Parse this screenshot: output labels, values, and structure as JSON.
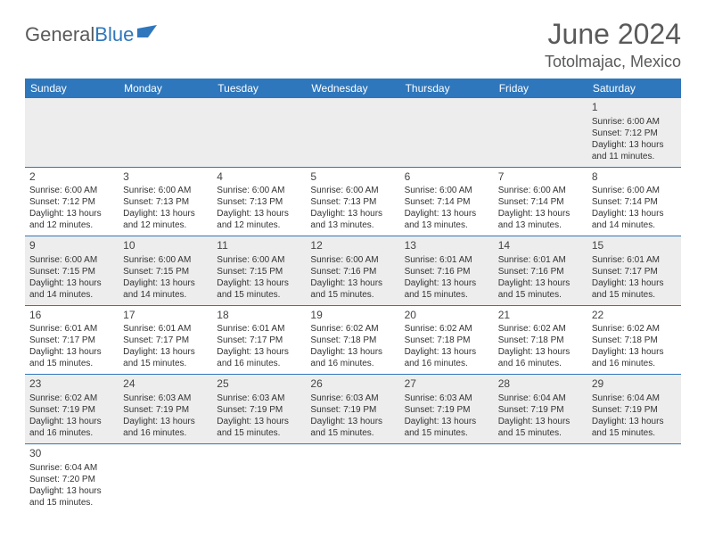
{
  "brand": {
    "part1": "General",
    "part2": "Blue"
  },
  "title": "June 2024",
  "location": "Totolmajac, Mexico",
  "colors": {
    "header_bg": "#2f77bc",
    "header_text": "#ffffff",
    "row_alt_bg": "#ededed",
    "row_bg": "#ffffff",
    "divider": "#2f77bc",
    "text": "#333333",
    "title_text": "#5a5a5a"
  },
  "typography": {
    "title_fontsize": 32,
    "location_fontsize": 18,
    "dayheader_fontsize": 12,
    "cell_fontsize": 10
  },
  "day_headers": [
    "Sunday",
    "Monday",
    "Tuesday",
    "Wednesday",
    "Thursday",
    "Friday",
    "Saturday"
  ],
  "weeks": [
    [
      null,
      null,
      null,
      null,
      null,
      null,
      {
        "d": "1",
        "sunrise": "Sunrise: 6:00 AM",
        "sunset": "Sunset: 7:12 PM",
        "dl1": "Daylight: 13 hours",
        "dl2": "and 11 minutes."
      }
    ],
    [
      {
        "d": "2",
        "sunrise": "Sunrise: 6:00 AM",
        "sunset": "Sunset: 7:12 PM",
        "dl1": "Daylight: 13 hours",
        "dl2": "and 12 minutes."
      },
      {
        "d": "3",
        "sunrise": "Sunrise: 6:00 AM",
        "sunset": "Sunset: 7:13 PM",
        "dl1": "Daylight: 13 hours",
        "dl2": "and 12 minutes."
      },
      {
        "d": "4",
        "sunrise": "Sunrise: 6:00 AM",
        "sunset": "Sunset: 7:13 PM",
        "dl1": "Daylight: 13 hours",
        "dl2": "and 12 minutes."
      },
      {
        "d": "5",
        "sunrise": "Sunrise: 6:00 AM",
        "sunset": "Sunset: 7:13 PM",
        "dl1": "Daylight: 13 hours",
        "dl2": "and 13 minutes."
      },
      {
        "d": "6",
        "sunrise": "Sunrise: 6:00 AM",
        "sunset": "Sunset: 7:14 PM",
        "dl1": "Daylight: 13 hours",
        "dl2": "and 13 minutes."
      },
      {
        "d": "7",
        "sunrise": "Sunrise: 6:00 AM",
        "sunset": "Sunset: 7:14 PM",
        "dl1": "Daylight: 13 hours",
        "dl2": "and 13 minutes."
      },
      {
        "d": "8",
        "sunrise": "Sunrise: 6:00 AM",
        "sunset": "Sunset: 7:14 PM",
        "dl1": "Daylight: 13 hours",
        "dl2": "and 14 minutes."
      }
    ],
    [
      {
        "d": "9",
        "sunrise": "Sunrise: 6:00 AM",
        "sunset": "Sunset: 7:15 PM",
        "dl1": "Daylight: 13 hours",
        "dl2": "and 14 minutes."
      },
      {
        "d": "10",
        "sunrise": "Sunrise: 6:00 AM",
        "sunset": "Sunset: 7:15 PM",
        "dl1": "Daylight: 13 hours",
        "dl2": "and 14 minutes."
      },
      {
        "d": "11",
        "sunrise": "Sunrise: 6:00 AM",
        "sunset": "Sunset: 7:15 PM",
        "dl1": "Daylight: 13 hours",
        "dl2": "and 15 minutes."
      },
      {
        "d": "12",
        "sunrise": "Sunrise: 6:00 AM",
        "sunset": "Sunset: 7:16 PM",
        "dl1": "Daylight: 13 hours",
        "dl2": "and 15 minutes."
      },
      {
        "d": "13",
        "sunrise": "Sunrise: 6:01 AM",
        "sunset": "Sunset: 7:16 PM",
        "dl1": "Daylight: 13 hours",
        "dl2": "and 15 minutes."
      },
      {
        "d": "14",
        "sunrise": "Sunrise: 6:01 AM",
        "sunset": "Sunset: 7:16 PM",
        "dl1": "Daylight: 13 hours",
        "dl2": "and 15 minutes."
      },
      {
        "d": "15",
        "sunrise": "Sunrise: 6:01 AM",
        "sunset": "Sunset: 7:17 PM",
        "dl1": "Daylight: 13 hours",
        "dl2": "and 15 minutes."
      }
    ],
    [
      {
        "d": "16",
        "sunrise": "Sunrise: 6:01 AM",
        "sunset": "Sunset: 7:17 PM",
        "dl1": "Daylight: 13 hours",
        "dl2": "and 15 minutes."
      },
      {
        "d": "17",
        "sunrise": "Sunrise: 6:01 AM",
        "sunset": "Sunset: 7:17 PM",
        "dl1": "Daylight: 13 hours",
        "dl2": "and 15 minutes."
      },
      {
        "d": "18",
        "sunrise": "Sunrise: 6:01 AM",
        "sunset": "Sunset: 7:17 PM",
        "dl1": "Daylight: 13 hours",
        "dl2": "and 16 minutes."
      },
      {
        "d": "19",
        "sunrise": "Sunrise: 6:02 AM",
        "sunset": "Sunset: 7:18 PM",
        "dl1": "Daylight: 13 hours",
        "dl2": "and 16 minutes."
      },
      {
        "d": "20",
        "sunrise": "Sunrise: 6:02 AM",
        "sunset": "Sunset: 7:18 PM",
        "dl1": "Daylight: 13 hours",
        "dl2": "and 16 minutes."
      },
      {
        "d": "21",
        "sunrise": "Sunrise: 6:02 AM",
        "sunset": "Sunset: 7:18 PM",
        "dl1": "Daylight: 13 hours",
        "dl2": "and 16 minutes."
      },
      {
        "d": "22",
        "sunrise": "Sunrise: 6:02 AM",
        "sunset": "Sunset: 7:18 PM",
        "dl1": "Daylight: 13 hours",
        "dl2": "and 16 minutes."
      }
    ],
    [
      {
        "d": "23",
        "sunrise": "Sunrise: 6:02 AM",
        "sunset": "Sunset: 7:19 PM",
        "dl1": "Daylight: 13 hours",
        "dl2": "and 16 minutes."
      },
      {
        "d": "24",
        "sunrise": "Sunrise: 6:03 AM",
        "sunset": "Sunset: 7:19 PM",
        "dl1": "Daylight: 13 hours",
        "dl2": "and 16 minutes."
      },
      {
        "d": "25",
        "sunrise": "Sunrise: 6:03 AM",
        "sunset": "Sunset: 7:19 PM",
        "dl1": "Daylight: 13 hours",
        "dl2": "and 15 minutes."
      },
      {
        "d": "26",
        "sunrise": "Sunrise: 6:03 AM",
        "sunset": "Sunset: 7:19 PM",
        "dl1": "Daylight: 13 hours",
        "dl2": "and 15 minutes."
      },
      {
        "d": "27",
        "sunrise": "Sunrise: 6:03 AM",
        "sunset": "Sunset: 7:19 PM",
        "dl1": "Daylight: 13 hours",
        "dl2": "and 15 minutes."
      },
      {
        "d": "28",
        "sunrise": "Sunrise: 6:04 AM",
        "sunset": "Sunset: 7:19 PM",
        "dl1": "Daylight: 13 hours",
        "dl2": "and 15 minutes."
      },
      {
        "d": "29",
        "sunrise": "Sunrise: 6:04 AM",
        "sunset": "Sunset: 7:19 PM",
        "dl1": "Daylight: 13 hours",
        "dl2": "and 15 minutes."
      }
    ],
    [
      {
        "d": "30",
        "sunrise": "Sunrise: 6:04 AM",
        "sunset": "Sunset: 7:20 PM",
        "dl1": "Daylight: 13 hours",
        "dl2": "and 15 minutes."
      },
      null,
      null,
      null,
      null,
      null,
      null
    ]
  ]
}
